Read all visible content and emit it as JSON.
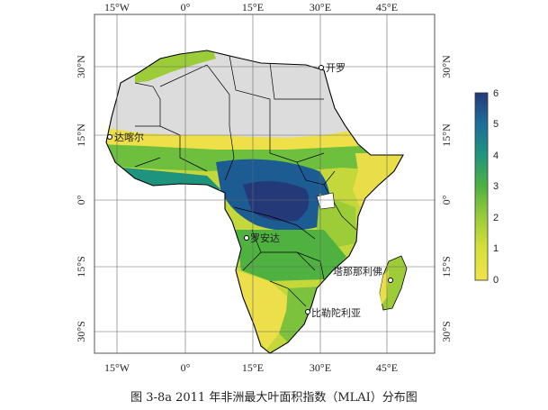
{
  "map": {
    "lon_ticks": [
      "15°W",
      "0°",
      "15°E",
      "30°E",
      "45°E"
    ],
    "lat_ticks": [
      "30°N",
      "15°N",
      "0°",
      "15°S",
      "30°S"
    ],
    "places": [
      {
        "key": "cairo",
        "label": "开罗"
      },
      {
        "key": "dakar",
        "label": "达喀尔"
      },
      {
        "key": "luanda",
        "label": "罗安达"
      },
      {
        "key": "antananarivo",
        "label": "塔那那利佛"
      },
      {
        "key": "pretoria",
        "label": "比勒陀利亚"
      }
    ]
  },
  "colorbar": {
    "ticks": [
      "6",
      "5",
      "4",
      "3",
      "2",
      "1",
      "0"
    ],
    "min": 0,
    "max": 6,
    "colors": [
      "#f1e34a",
      "#d6e03a",
      "#9ccd38",
      "#4fb240",
      "#1e947e",
      "#1d6f9a",
      "#243a78"
    ]
  },
  "caption": "图 3-8a 2011 年非洲最大叶面积指数（MLAI）分布图",
  "palette": {
    "desert": "#dcdcdc",
    "border": "#000000"
  }
}
